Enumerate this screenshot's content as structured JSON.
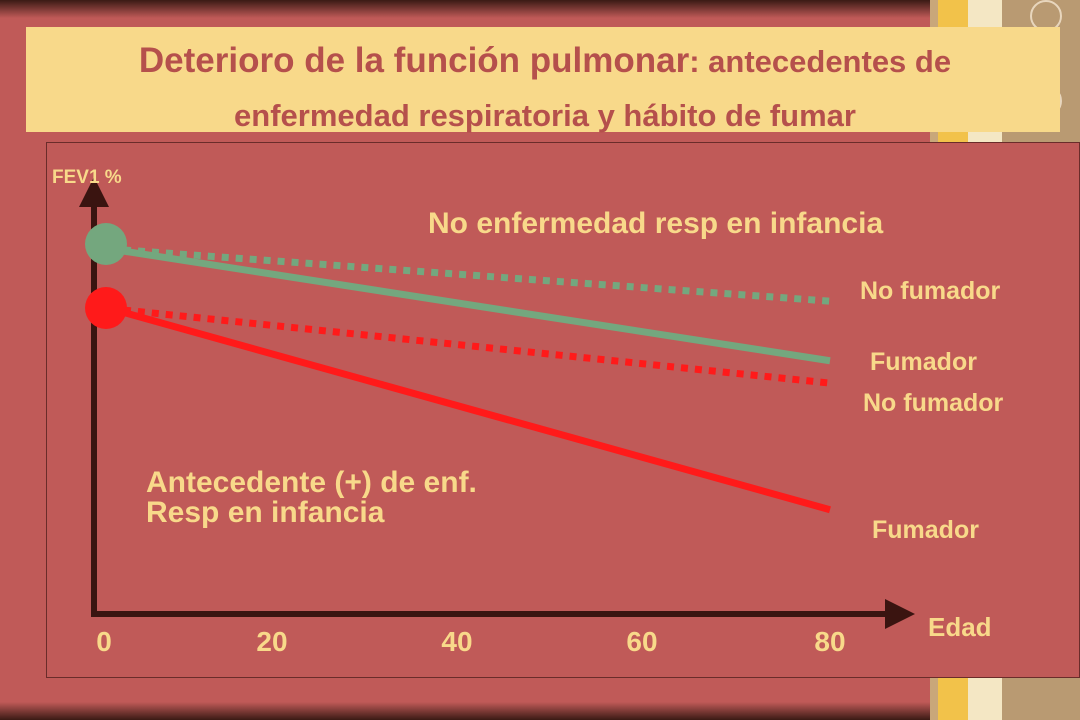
{
  "title": {
    "main": "Deterioro de la función pulmonar",
    "sub": ": antecedentes de enfermedad respiratoria y hábito de fumar"
  },
  "colors": {
    "background": "#c05a58",
    "title_box": "#f8d98a",
    "title_text": "#b5504c",
    "green_series": "#74a77e",
    "red_series": "#ff1a1a",
    "axis": "#3a1410",
    "label_text": "#f8d98a"
  },
  "chart_data": {
    "type": "line",
    "ylabel": "FEV1 %",
    "xlabel": "Edad",
    "x_ticks": [
      "0",
      "20",
      "40",
      "60",
      "80"
    ],
    "xlim": [
      0,
      80
    ],
    "grid": false,
    "group_labels": {
      "no_disease": "No enfermedad resp en infancia",
      "disease_line1": "Antecedente (+) de enf.",
      "disease_line2": "Resp en infancia"
    },
    "series": [
      {
        "label": "No fumador",
        "group": "no_disease",
        "style": "dotted",
        "color": "#74a77e",
        "x": [
          0,
          80
        ],
        "y": [
          100,
          93
        ]
      },
      {
        "label": "Fumador",
        "group": "no_disease",
        "style": "solid",
        "color": "#74a77e",
        "x": [
          0,
          80
        ],
        "y": [
          100,
          85
        ]
      },
      {
        "label": "No fumador",
        "group": "disease",
        "style": "dotted",
        "color": "#ff1a1a",
        "x": [
          0,
          80
        ],
        "y": [
          92,
          82
        ]
      },
      {
        "label": "Fumador",
        "group": "disease",
        "style": "solid",
        "color": "#ff1a1a",
        "x": [
          0,
          80
        ],
        "y": [
          92,
          65
        ]
      }
    ]
  }
}
